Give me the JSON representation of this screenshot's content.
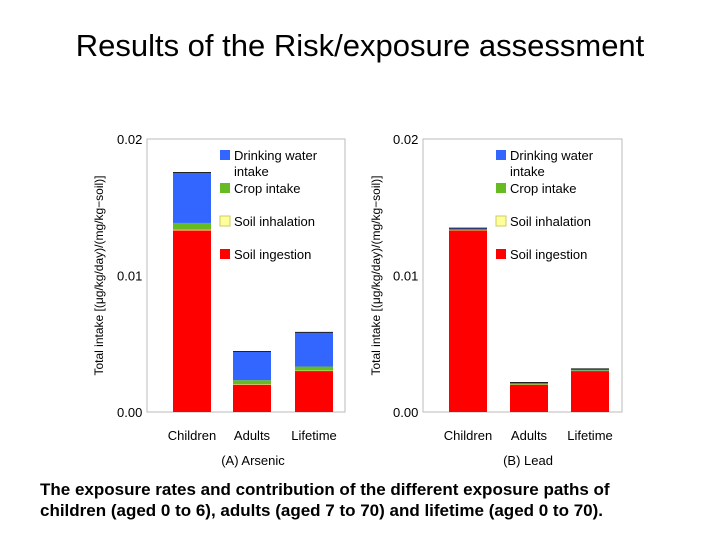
{
  "title": "Results of the Risk/exposure assessment",
  "caption": [
    "The exposure rates and contribution of the different exposure paths of",
    "children (aged 0 to 6), adults (aged 7 to 70) and lifetime (aged 0 to 70)."
  ],
  "colors": {
    "drinking_water": "#3366ff",
    "crop": "#66bb22",
    "soil_inhalation": "#ffff99",
    "soil_ingestion": "#ff0000"
  },
  "chart_data": [
    {
      "type": "bar",
      "stacked": true,
      "title": "(A) Arsenic",
      "ylabel": "Total intake [(μg/kg/day)/(mg/kg−soil)]",
      "yticks": [
        "0.02",
        "0.01",
        "0.00"
      ],
      "ylim": [
        0,
        0.02
      ],
      "categories": [
        "Children",
        "Adults",
        "Lifetime"
      ],
      "series": [
        {
          "name": "Soil ingestion",
          "key": "soil_ingestion",
          "values": [
            0.0133,
            0.002,
            0.003
          ]
        },
        {
          "name": "Soil inhalation",
          "key": "soil_inhalation",
          "values": [
            5e-05,
            3e-05,
            3e-05
          ]
        },
        {
          "name": "Crop intake",
          "key": "crop",
          "values": [
            0.0005,
            0.0003,
            0.0003
          ]
        },
        {
          "name": "Drinking water intake",
          "key": "drinking_water",
          "values": [
            0.0037,
            0.0021,
            0.0025
          ]
        }
      ],
      "legend": [
        "Drinking water intake",
        "Crop intake",
        "Soil inhalation",
        "Soil ingestion"
      ]
    },
    {
      "type": "bar",
      "stacked": true,
      "title": "(B) Lead",
      "ylabel": "Total intake [(μg/kg/day)/(mg/kg−soil)]",
      "yticks": [
        "0.02",
        "0.01",
        "0.00"
      ],
      "ylim": [
        0,
        0.02
      ],
      "categories": [
        "Children",
        "Adults",
        "Lifetime"
      ],
      "series": [
        {
          "name": "Soil ingestion",
          "key": "soil_ingestion",
          "values": [
            0.0133,
            0.002,
            0.003
          ]
        },
        {
          "name": "Soil inhalation",
          "key": "soil_inhalation",
          "values": [
            2e-05,
            1e-05,
            1e-05
          ]
        },
        {
          "name": "Crop intake",
          "key": "crop",
          "values": [
            5e-05,
            5e-05,
            5e-05
          ]
        },
        {
          "name": "Drinking water intake",
          "key": "drinking_water",
          "values": [
            0.0001,
            0.0001,
            0.0001
          ]
        }
      ],
      "legend": [
        "Drinking water intake",
        "Crop intake",
        "Soil inhalation",
        "Soil ingestion"
      ]
    }
  ]
}
